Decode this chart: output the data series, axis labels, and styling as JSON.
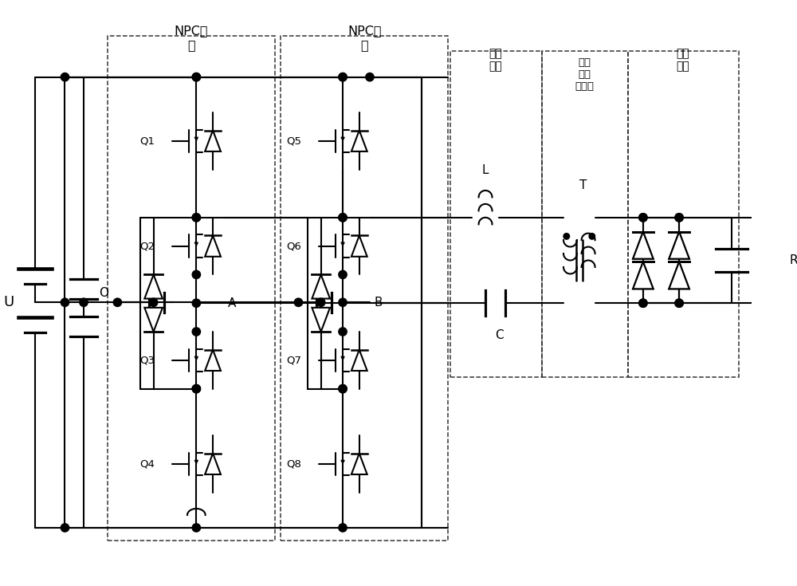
{
  "bg_color": "#ffffff",
  "lc": "#000000",
  "lw": 1.5,
  "fw": 10.0,
  "fh": 7.35,
  "npc1_label": "NPC桥\n臂",
  "npc2_label": "NPC桥\n臂",
  "res_label": "谐振\n网络",
  "hft_label": "高频\n隔离\n变压器",
  "rect_label": "整流\n电路",
  "U_label": "U",
  "O_label": "O",
  "A_label": "A",
  "B_label": "B",
  "L_label": "L",
  "T_label": "T",
  "C_label": "C",
  "RL_label": "RL",
  "Q_labels": [
    "Q1",
    "Q2",
    "Q3",
    "Q4",
    "Q5",
    "Q6",
    "Q7",
    "Q8"
  ]
}
